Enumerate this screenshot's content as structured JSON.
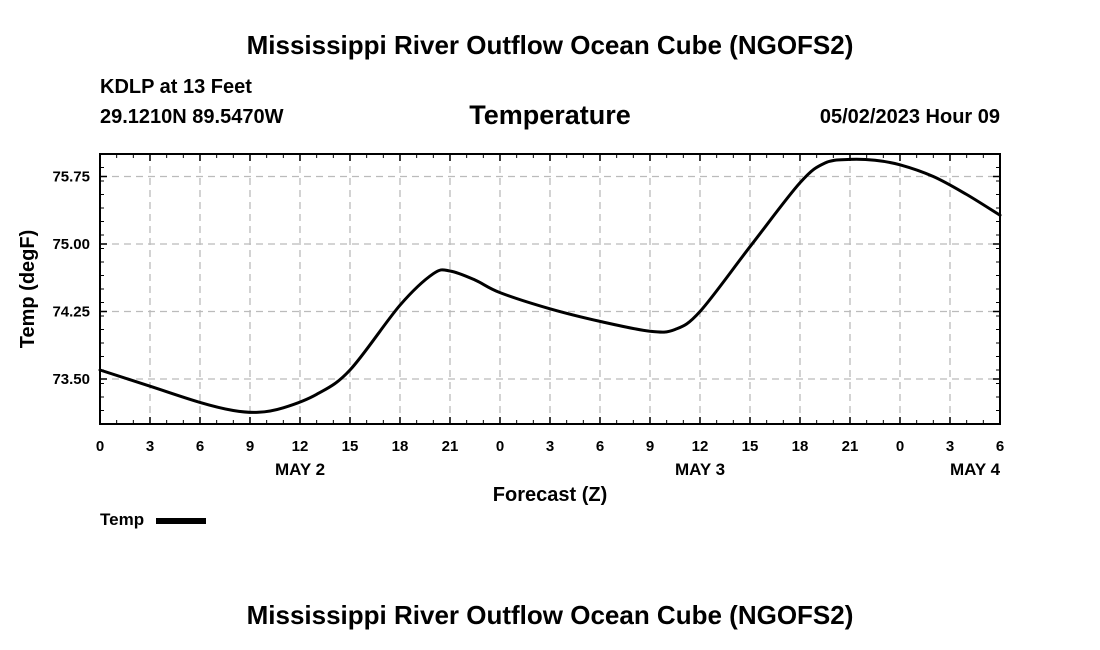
{
  "header": {
    "title": "Mississippi River Outflow Ocean Cube (NGOFS2)",
    "station": "KDLP at 13 Feet",
    "coords": "29.1210N  89.5470W",
    "variable": "Temperature",
    "datetime": "05/02/2023 Hour 09"
  },
  "footer": {
    "title": "Mississippi River Outflow Ocean Cube (NGOFS2)"
  },
  "legend": {
    "label": "Temp",
    "color": "#000000"
  },
  "chart_data": {
    "type": "line",
    "title": "Temperature",
    "xlabel": "Forecast (Z)",
    "ylabel": "Temp (degF)",
    "xlim": [
      0,
      54
    ],
    "ylim": [
      73.0,
      76.0
    ],
    "grid": true,
    "legend_position": "bottom-left",
    "x_ticks": [
      0,
      3,
      6,
      9,
      12,
      15,
      18,
      21,
      24,
      27,
      30,
      33,
      36,
      39,
      42,
      45,
      48,
      51,
      54
    ],
    "x_tick_labels": [
      "0",
      "3",
      "6",
      "9",
      "12",
      "15",
      "18",
      "21",
      "0",
      "3",
      "6",
      "9",
      "12",
      "15",
      "18",
      "21",
      "0",
      "3",
      "6"
    ],
    "y_ticks": [
      73.5,
      74.25,
      75.0,
      75.75
    ],
    "y_tick_labels": [
      "73.50",
      "74.25",
      "75.00",
      "75.75"
    ],
    "day_labels": [
      {
        "x": 12,
        "label": "MAY 2"
      },
      {
        "x": 36,
        "label": "MAY 3"
      },
      {
        "x": 52.5,
        "label": "MAY 4"
      }
    ],
    "series": [
      {
        "name": "Temp",
        "color": "#000000",
        "x": [
          0,
          3,
          6,
          8,
          9.5,
          11,
          13,
          15,
          18,
          20,
          21,
          22.5,
          24,
          27,
          30,
          33,
          34.5,
          36,
          39,
          42,
          43.5,
          45,
          46.5,
          48,
          50,
          52,
          54
        ],
        "y": [
          73.6,
          73.42,
          73.24,
          73.15,
          73.13,
          73.18,
          73.33,
          73.6,
          74.32,
          74.67,
          74.7,
          74.6,
          74.46,
          74.28,
          74.14,
          74.03,
          74.05,
          74.25,
          74.97,
          75.68,
          75.9,
          75.94,
          75.93,
          75.88,
          75.75,
          75.55,
          75.32
        ]
      }
    ]
  }
}
